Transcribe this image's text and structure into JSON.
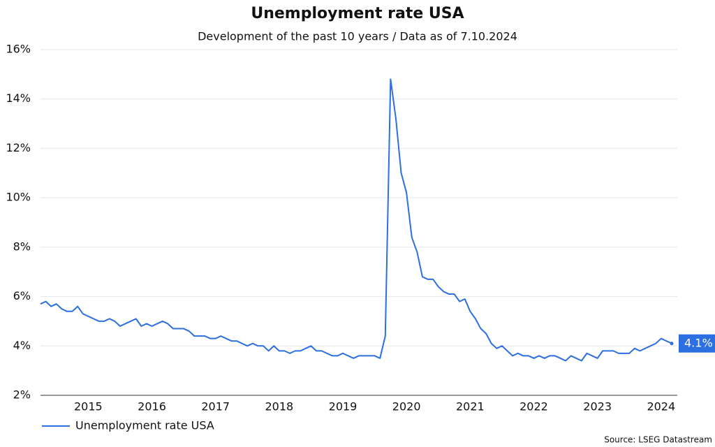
{
  "chart_data": {
    "type": "line",
    "title": "Unemployment rate USA",
    "subtitle": "Development of the past 10 years / Data as of 7.10.2024",
    "source": "Source: LSEG Datastream",
    "categories": [
      null,
      null,
      null,
      null,
      null,
      null,
      null,
      null,
      null,
      "2015",
      null,
      null,
      null,
      null,
      null,
      null,
      null,
      null,
      null,
      null,
      null,
      "2016",
      null,
      null,
      null,
      null,
      null,
      null,
      null,
      null,
      null,
      null,
      null,
      "2017",
      null,
      null,
      null,
      null,
      null,
      null,
      null,
      null,
      null,
      null,
      null,
      "2018",
      null,
      null,
      null,
      null,
      null,
      null,
      null,
      null,
      null,
      null,
      null,
      "2019",
      null,
      null,
      null,
      null,
      null,
      null,
      null,
      null,
      null,
      null,
      null,
      "2020",
      null,
      null,
      null,
      null,
      null,
      null,
      null,
      null,
      null,
      null,
      null,
      "2021",
      null,
      null,
      null,
      null,
      null,
      null,
      null,
      null,
      null,
      null,
      null,
      "2022",
      null,
      null,
      null,
      null,
      null,
      null,
      null,
      null,
      null,
      null,
      null,
      "2023",
      null,
      null,
      null,
      null,
      null,
      null,
      null,
      null,
      null,
      null,
      null,
      "2024",
      null,
      null
    ],
    "series": [
      {
        "name": "Unemployment rate USA",
        "color": "#2b6fe0",
        "values": [
          5.7,
          5.8,
          5.6,
          5.7,
          5.5,
          5.4,
          5.4,
          5.6,
          5.3,
          5.2,
          5.1,
          5.0,
          5.0,
          5.1,
          5.0,
          4.8,
          4.9,
          5.0,
          5.1,
          4.8,
          4.9,
          4.8,
          4.9,
          5.0,
          4.9,
          4.7,
          4.7,
          4.7,
          4.6,
          4.4,
          4.4,
          4.4,
          4.3,
          4.3,
          4.4,
          4.3,
          4.2,
          4.2,
          4.1,
          4.0,
          4.1,
          4.0,
          4.0,
          3.8,
          4.0,
          3.8,
          3.8,
          3.7,
          3.8,
          3.8,
          3.9,
          4.0,
          3.8,
          3.8,
          3.7,
          3.6,
          3.6,
          3.7,
          3.6,
          3.5,
          3.6,
          3.6,
          3.6,
          3.6,
          3.5,
          4.4,
          14.8,
          13.2,
          11.0,
          10.2,
          8.4,
          7.8,
          6.8,
          6.7,
          6.7,
          6.4,
          6.2,
          6.1,
          6.1,
          5.8,
          5.9,
          5.4,
          5.1,
          4.7,
          4.5,
          4.1,
          3.9,
          4.0,
          3.8,
          3.6,
          3.7,
          3.6,
          3.6,
          3.5,
          3.6,
          3.5,
          3.6,
          3.6,
          3.5,
          3.4,
          3.6,
          3.5,
          3.4,
          3.7,
          3.6,
          3.5,
          3.8,
          3.8,
          3.8,
          3.7,
          3.7,
          3.7,
          3.9,
          3.8,
          3.9,
          4.0,
          4.1,
          4.3,
          4.2,
          4.1
        ],
        "value_labels": [
          null,
          null,
          null,
          null,
          null,
          null,
          null,
          null,
          null,
          null,
          null,
          null,
          null,
          null,
          null,
          null,
          null,
          null,
          null,
          null,
          null,
          null,
          null,
          null,
          null,
          null,
          null,
          null,
          null,
          null,
          null,
          null,
          null,
          null,
          null,
          null,
          null,
          null,
          null,
          null,
          null,
          null,
          null,
          null,
          null,
          null,
          null,
          null,
          null,
          null,
          null,
          null,
          null,
          null,
          null,
          null,
          null,
          null,
          null,
          null,
          null,
          null,
          null,
          null,
          null,
          null,
          null,
          null,
          null,
          null,
          null,
          null,
          null,
          null,
          null,
          null,
          null,
          null,
          null,
          null,
          null,
          null,
          null,
          null,
          null,
          null,
          null,
          null,
          null,
          null,
          null,
          null,
          null,
          null,
          null,
          null,
          null,
          null,
          null,
          null,
          null,
          null,
          null,
          null,
          null,
          null,
          null,
          null,
          null,
          null,
          null,
          null,
          null,
          null,
          null,
          null,
          null,
          null,
          null,
          "4.1%"
        ]
      }
    ],
    "ylim": [
      2,
      16
    ],
    "yticks": [
      {
        "value": 2,
        "label": "2%"
      },
      {
        "value": 4,
        "label": "4%"
      },
      {
        "value": 6,
        "label": "6%"
      },
      {
        "value": 8,
        "label": "8%"
      },
      {
        "value": 10,
        "label": "10%"
      },
      {
        "value": 12,
        "label": "12%"
      },
      {
        "value": 14,
        "label": "14%"
      },
      {
        "value": 16,
        "label": "16%"
      }
    ],
    "grid": true,
    "legend": "bottom-left"
  }
}
